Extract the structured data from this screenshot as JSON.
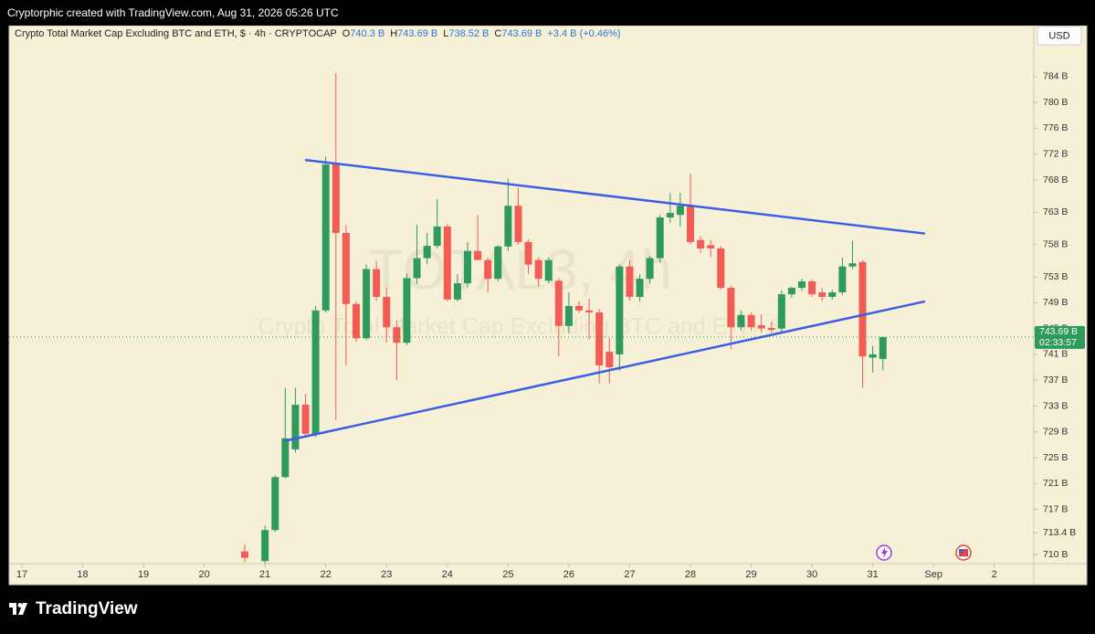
{
  "header": {
    "credit": "Cryptorphic created with TradingView.com, Aug 31, 2026 05:26 UTC",
    "brand": "TradingView",
    "currency": "USD"
  },
  "chart_data": {
    "type": "candlestick",
    "title": "Crypto Total Market Cap Excluding BTC and ETH, $ · 4h · CRYPTOCAP",
    "watermark": "TOTAL3, 4h",
    "watermark_subtitle": "Crypto Total Market Cap Excluding BTC and ETH, $",
    "legend": [
      {
        "key": "O",
        "value": "740.3 B"
      },
      {
        "key": "H",
        "value": "743.69 B"
      },
      {
        "key": "L",
        "value": "738.52 B"
      },
      {
        "key": "C",
        "value": "743.69 B"
      }
    ],
    "change": "+3.4 B (+0.46%)",
    "up_color": "#2e9a5b",
    "down_color": "#f25c54",
    "x": [
      20.667,
      21,
      21.167,
      21.333,
      21.5,
      21.667,
      21.833,
      22,
      22.167,
      22.333,
      22.5,
      22.667,
      22.833,
      23,
      23.167,
      23.333,
      23.5,
      23.667,
      23.833,
      24,
      24.167,
      24.333,
      24.5,
      24.667,
      24.833,
      25,
      25.167,
      25.333,
      25.5,
      25.667,
      25.833,
      26,
      26.167,
      26.333,
      26.5,
      26.667,
      26.833,
      27,
      27.167,
      27.333,
      27.5,
      27.667,
      27.833,
      28,
      28.167,
      28.333,
      28.5,
      28.667,
      28.833,
      29,
      29.167,
      29.333,
      29.5,
      29.667,
      29.833,
      30,
      30.167,
      30.333,
      30.5,
      30.667,
      30.833,
      31,
      31.167
    ],
    "open": [
      710.5,
      709.0,
      713.8,
      722.0,
      726.3,
      733.2,
      728.7,
      747.8,
      770.4,
      759.8,
      748.8,
      743.5,
      754.2,
      749.9,
      745.2,
      742.8,
      752.8,
      755.9,
      757.8,
      760.8,
      749.5,
      752.0,
      757.0,
      755.6,
      752.7,
      757.7,
      764.0,
      758.4,
      755.6,
      752.4,
      752.4,
      745.4,
      748.5,
      747.8,
      747.5,
      741.4,
      741.0,
      754.6,
      749.9,
      752.7,
      755.9,
      762.2,
      762.6,
      764.0,
      758.7,
      757.9,
      757.4,
      751.3,
      745.2,
      747.1,
      745.5,
      745.1,
      745.0,
      750.3,
      751.3,
      752.3,
      750.6,
      749.9,
      750.6,
      754.6,
      755.3,
      740.5,
      740.3
    ],
    "high": [
      711.6,
      714.5,
      722.3,
      735.8,
      735.8,
      734.9,
      748.5,
      771.6,
      784.6,
      761.0,
      749.2,
      754.9,
      755.5,
      751.3,
      746.3,
      753.5,
      761.0,
      759.8,
      765.0,
      761.2,
      753.4,
      758.4,
      762.6,
      756.0,
      757.9,
      768.2,
      766.8,
      758.8,
      756.0,
      756.0,
      752.8,
      750.6,
      749.2,
      749.6,
      748.0,
      743.5,
      754.9,
      755.6,
      753.4,
      756.3,
      762.6,
      766.0,
      766.0,
      769.0,
      759.3,
      758.7,
      757.8,
      751.6,
      747.8,
      747.5,
      747.2,
      746.1,
      750.9,
      751.5,
      752.7,
      752.6,
      751.3,
      751.0,
      756.0,
      758.6,
      755.6,
      742.3,
      743.69
    ],
    "low": [
      708.8,
      708.7,
      713.5,
      721.8,
      725.8,
      728.3,
      728.2,
      747.5,
      730.8,
      739.3,
      743.0,
      743.2,
      749.3,
      742.8,
      737.0,
      742.4,
      751.9,
      755.0,
      757.4,
      749.2,
      749.2,
      751.3,
      756.2,
      750.6,
      752.3,
      757.0,
      758.0,
      753.5,
      751.5,
      752.0,
      740.7,
      744.3,
      747.4,
      743.3,
      736.5,
      736.5,
      738.5,
      749.3,
      749.2,
      752.0,
      755.2,
      761.4,
      760.8,
      758.0,
      756.7,
      756.1,
      751.0,
      741.8,
      744.7,
      744.7,
      744.4,
      744.3,
      744.4,
      749.8,
      750.8,
      749.9,
      749.3,
      749.5,
      750.2,
      754.2,
      735.8,
      738.2,
      738.52
    ],
    "close": [
      709.5,
      713.8,
      722.0,
      728.0,
      733.2,
      728.7,
      747.8,
      770.4,
      759.8,
      748.8,
      743.5,
      754.2,
      749.9,
      745.2,
      742.8,
      752.8,
      755.9,
      757.8,
      760.8,
      749.5,
      752.0,
      757.0,
      755.6,
      752.7,
      757.7,
      764.0,
      758.4,
      754.9,
      752.7,
      755.6,
      745.4,
      748.5,
      747.8,
      747.5,
      739.3,
      739.0,
      754.6,
      749.9,
      752.7,
      755.9,
      762.2,
      762.9,
      764.0,
      758.4,
      757.4,
      757.4,
      751.3,
      745.2,
      747.1,
      745.2,
      745.0,
      744.8,
      750.3,
      751.3,
      752.3,
      750.3,
      749.9,
      750.6,
      754.6,
      755.1,
      740.7,
      741.0,
      743.69
    ],
    "trendlines": [
      {
        "color": "#3a5fe5",
        "x": [
          21.66,
          31.86
        ],
        "y": [
          771.1,
          759.7
        ]
      },
      {
        "color": "#3a5fe5",
        "x": [
          21.33,
          31.86
        ],
        "y": [
          727.6,
          749.2
        ]
      }
    ],
    "last_price": {
      "value": 743.69,
      "label": "743.69 B",
      "countdown": "02:33:57"
    },
    "xlim": [
      16.79,
      33.65
    ],
    "xticks": [
      17,
      18,
      19,
      20,
      21,
      22,
      23,
      24,
      25,
      26,
      27,
      28,
      29,
      30,
      31,
      {
        "value": 32,
        "label": "Sep"
      },
      {
        "value": 33,
        "label": "2"
      }
    ],
    "ylim": [
      708.6,
      791.9
    ],
    "yticks": [
      {
        "value": 784,
        "label": "784 B"
      },
      {
        "value": 780,
        "label": "780 B"
      },
      {
        "value": 776,
        "label": "776 B"
      },
      {
        "value": 772,
        "label": "772 B"
      },
      {
        "value": 768,
        "label": "768 B"
      },
      {
        "value": 763,
        "label": "763 B"
      },
      {
        "value": 758,
        "label": "758 B"
      },
      {
        "value": 753,
        "label": "753 B"
      },
      {
        "value": 749,
        "label": "749 B"
      },
      {
        "value": 745,
        "label": "745 B"
      },
      {
        "value": 741,
        "label": "741 B"
      },
      {
        "value": 737,
        "label": "737 B"
      },
      {
        "value": 733,
        "label": "733 B"
      },
      {
        "value": 729,
        "label": "729 B"
      },
      {
        "value": 725,
        "label": "725 B"
      },
      {
        "value": 721,
        "label": "721 B"
      },
      {
        "value": 717,
        "label": "717 B"
      },
      {
        "value": 713.4,
        "label": "713.4 B"
      },
      {
        "value": 710,
        "label": "710 B"
      }
    ]
  }
}
